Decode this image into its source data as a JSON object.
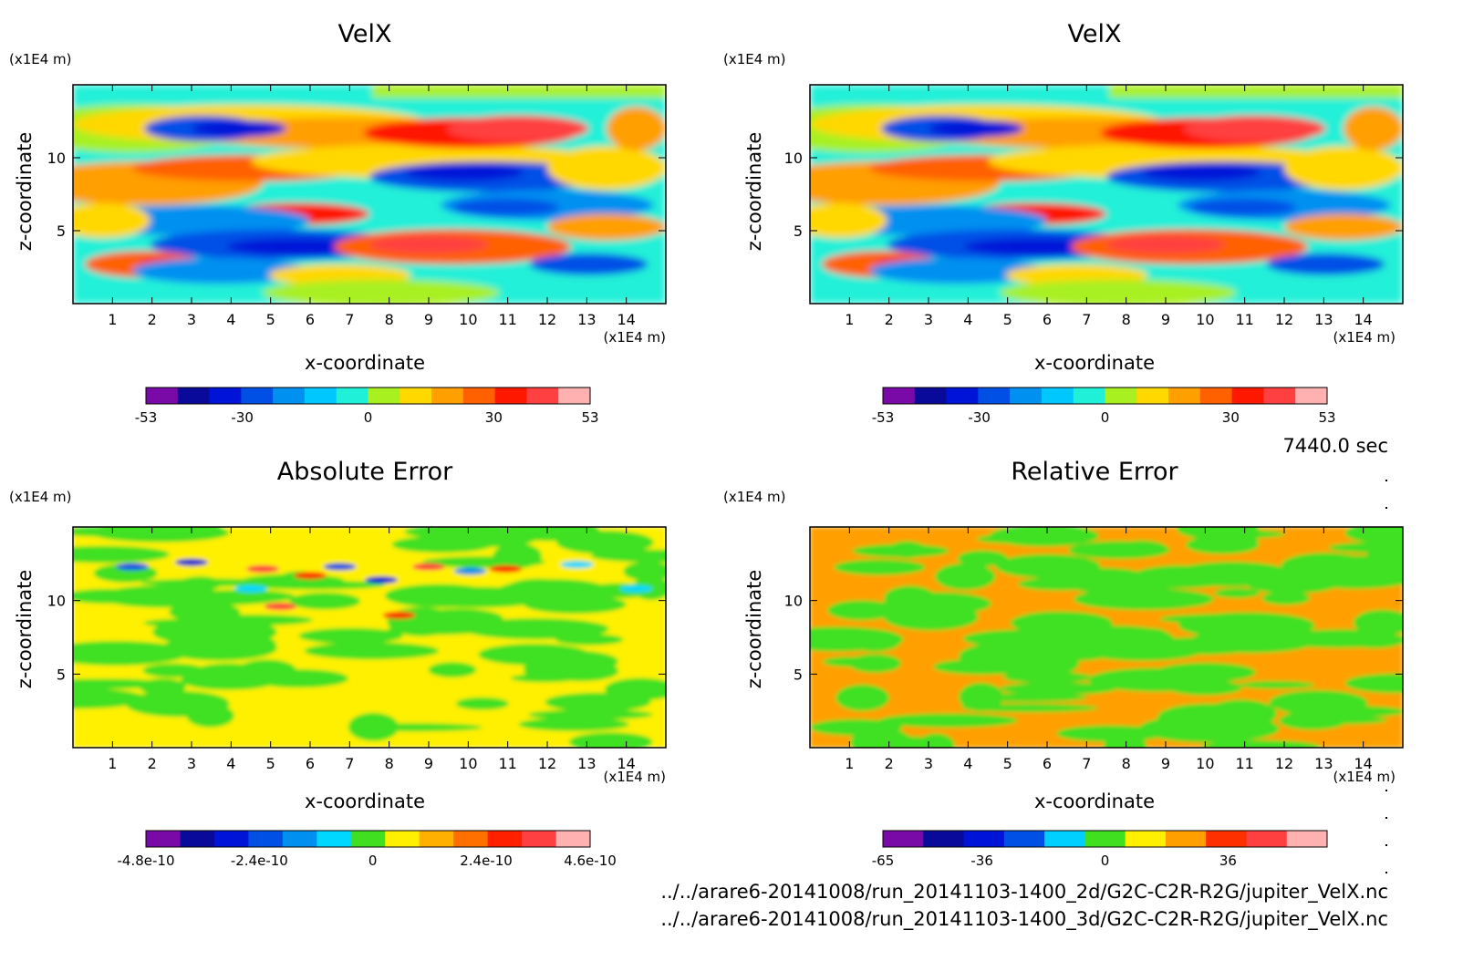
{
  "chart_data": [
    {
      "type": "heatmap",
      "title": "VelX",
      "xlabel": "x-coordinate",
      "ylabel": "z-coordinate",
      "x_unit": "(x1E4 m)",
      "y_unit": "(x1E4 m)",
      "x_ticks": [
        "1",
        "2",
        "3",
        "4",
        "5",
        "6",
        "7",
        "8",
        "9",
        "10",
        "11",
        "12",
        "13",
        "14"
      ],
      "y_ticks": [
        "5",
        "10"
      ],
      "xlim": [
        0,
        15
      ],
      "ylim": [
        0,
        15
      ],
      "colorbar": {
        "range": [
          -53,
          53
        ],
        "tick_labels": [
          "-53",
          "-30",
          "0",
          "30",
          "53"
        ],
        "tick_values": [
          -53,
          -30,
          0,
          30,
          53
        ],
        "colors": [
          "#7a0aa8",
          "#0a0a9a",
          "#0014d8",
          "#0050e6",
          "#0090f0",
          "#00c8ff",
          "#20f0d8",
          "#a8f020",
          "#ffd800",
          "#ff9f00",
          "#ff6000",
          "#ff1800",
          "#ff4040",
          "#ffb0b0"
        ]
      }
    },
    {
      "type": "heatmap",
      "title": "VelX",
      "xlabel": "x-coordinate",
      "ylabel": "z-coordinate",
      "x_unit": "(x1E4 m)",
      "y_unit": "(x1E4 m)",
      "x_ticks": [
        "1",
        "2",
        "3",
        "4",
        "5",
        "6",
        "7",
        "8",
        "9",
        "10",
        "11",
        "12",
        "13",
        "14"
      ],
      "y_ticks": [
        "5",
        "10"
      ],
      "xlim": [
        0,
        15
      ],
      "ylim": [
        0,
        15
      ],
      "colorbar": {
        "range": [
          -53,
          53
        ],
        "tick_labels": [
          "-53",
          "-30",
          "0",
          "30",
          "53"
        ],
        "tick_values": [
          -53,
          -30,
          0,
          30,
          53
        ],
        "colors": [
          "#7a0aa8",
          "#0a0a9a",
          "#0014d8",
          "#0050e6",
          "#0090f0",
          "#00c8ff",
          "#20f0d8",
          "#a8f020",
          "#ffd800",
          "#ff9f00",
          "#ff6000",
          "#ff1800",
          "#ff4040",
          "#ffb0b0"
        ]
      }
    },
    {
      "type": "heatmap",
      "title": "Absolute Error",
      "xlabel": "x-coordinate",
      "ylabel": "z-coordinate",
      "x_unit": "(x1E4 m)",
      "y_unit": "(x1E4 m)",
      "x_ticks": [
        "1",
        "2",
        "3",
        "4",
        "5",
        "6",
        "7",
        "8",
        "9",
        "10",
        "11",
        "12",
        "13",
        "14"
      ],
      "y_ticks": [
        "5",
        "10"
      ],
      "xlim": [
        0,
        15
      ],
      "ylim": [
        0,
        15
      ],
      "colorbar": {
        "range": [
          -4.8e-10,
          4.6e-10
        ],
        "tick_labels": [
          "-4.8e-10",
          "-2.4e-10",
          "0",
          "2.4e-10",
          "4.6e-10"
        ],
        "tick_values": [
          -4.8e-10,
          -2.4e-10,
          0,
          2.4e-10,
          4.6e-10
        ],
        "colors": [
          "#7a0aa8",
          "#0a0a9a",
          "#0014d8",
          "#0050e6",
          "#0090f0",
          "#00d8ff",
          "#40e020",
          "#fff000",
          "#ffb000",
          "#ff7000",
          "#ff2000",
          "#ff4040",
          "#ffb0b0"
        ]
      }
    },
    {
      "type": "heatmap",
      "title": "Relative Error",
      "xlabel": "x-coordinate",
      "ylabel": "z-coordinate",
      "x_unit": "(x1E4 m)",
      "y_unit": "(x1E4 m)",
      "x_ticks": [
        "1",
        "2",
        "3",
        "4",
        "5",
        "6",
        "7",
        "8",
        "9",
        "10",
        "11",
        "12",
        "13",
        "14"
      ],
      "y_ticks": [
        "5",
        "10"
      ],
      "xlim": [
        0,
        15
      ],
      "ylim": [
        0,
        15
      ],
      "colorbar": {
        "range": [
          -65,
          65
        ],
        "tick_labels": [
          "-65",
          "-36",
          "0",
          "36"
        ],
        "tick_values": [
          -65,
          -36,
          0,
          36
        ],
        "colors": [
          "#7a0aa8",
          "#0a0a9a",
          "#0014d8",
          "#0050e6",
          "#00d0ff",
          "#40e020",
          "#fff000",
          "#ffa000",
          "#ff3000",
          "#ff4040",
          "#ffb0b0"
        ]
      }
    }
  ],
  "time_label": "7440.0 sec",
  "file_lines": [
    "../../arare6-20141008/run_20141103-1400_2d/G2C-C2R-R2G/jupiter_VelX.nc",
    "../../arare6-20141008/run_20141103-1400_3d/G2C-C2R-R2G/jupiter_VelX.nc"
  ]
}
